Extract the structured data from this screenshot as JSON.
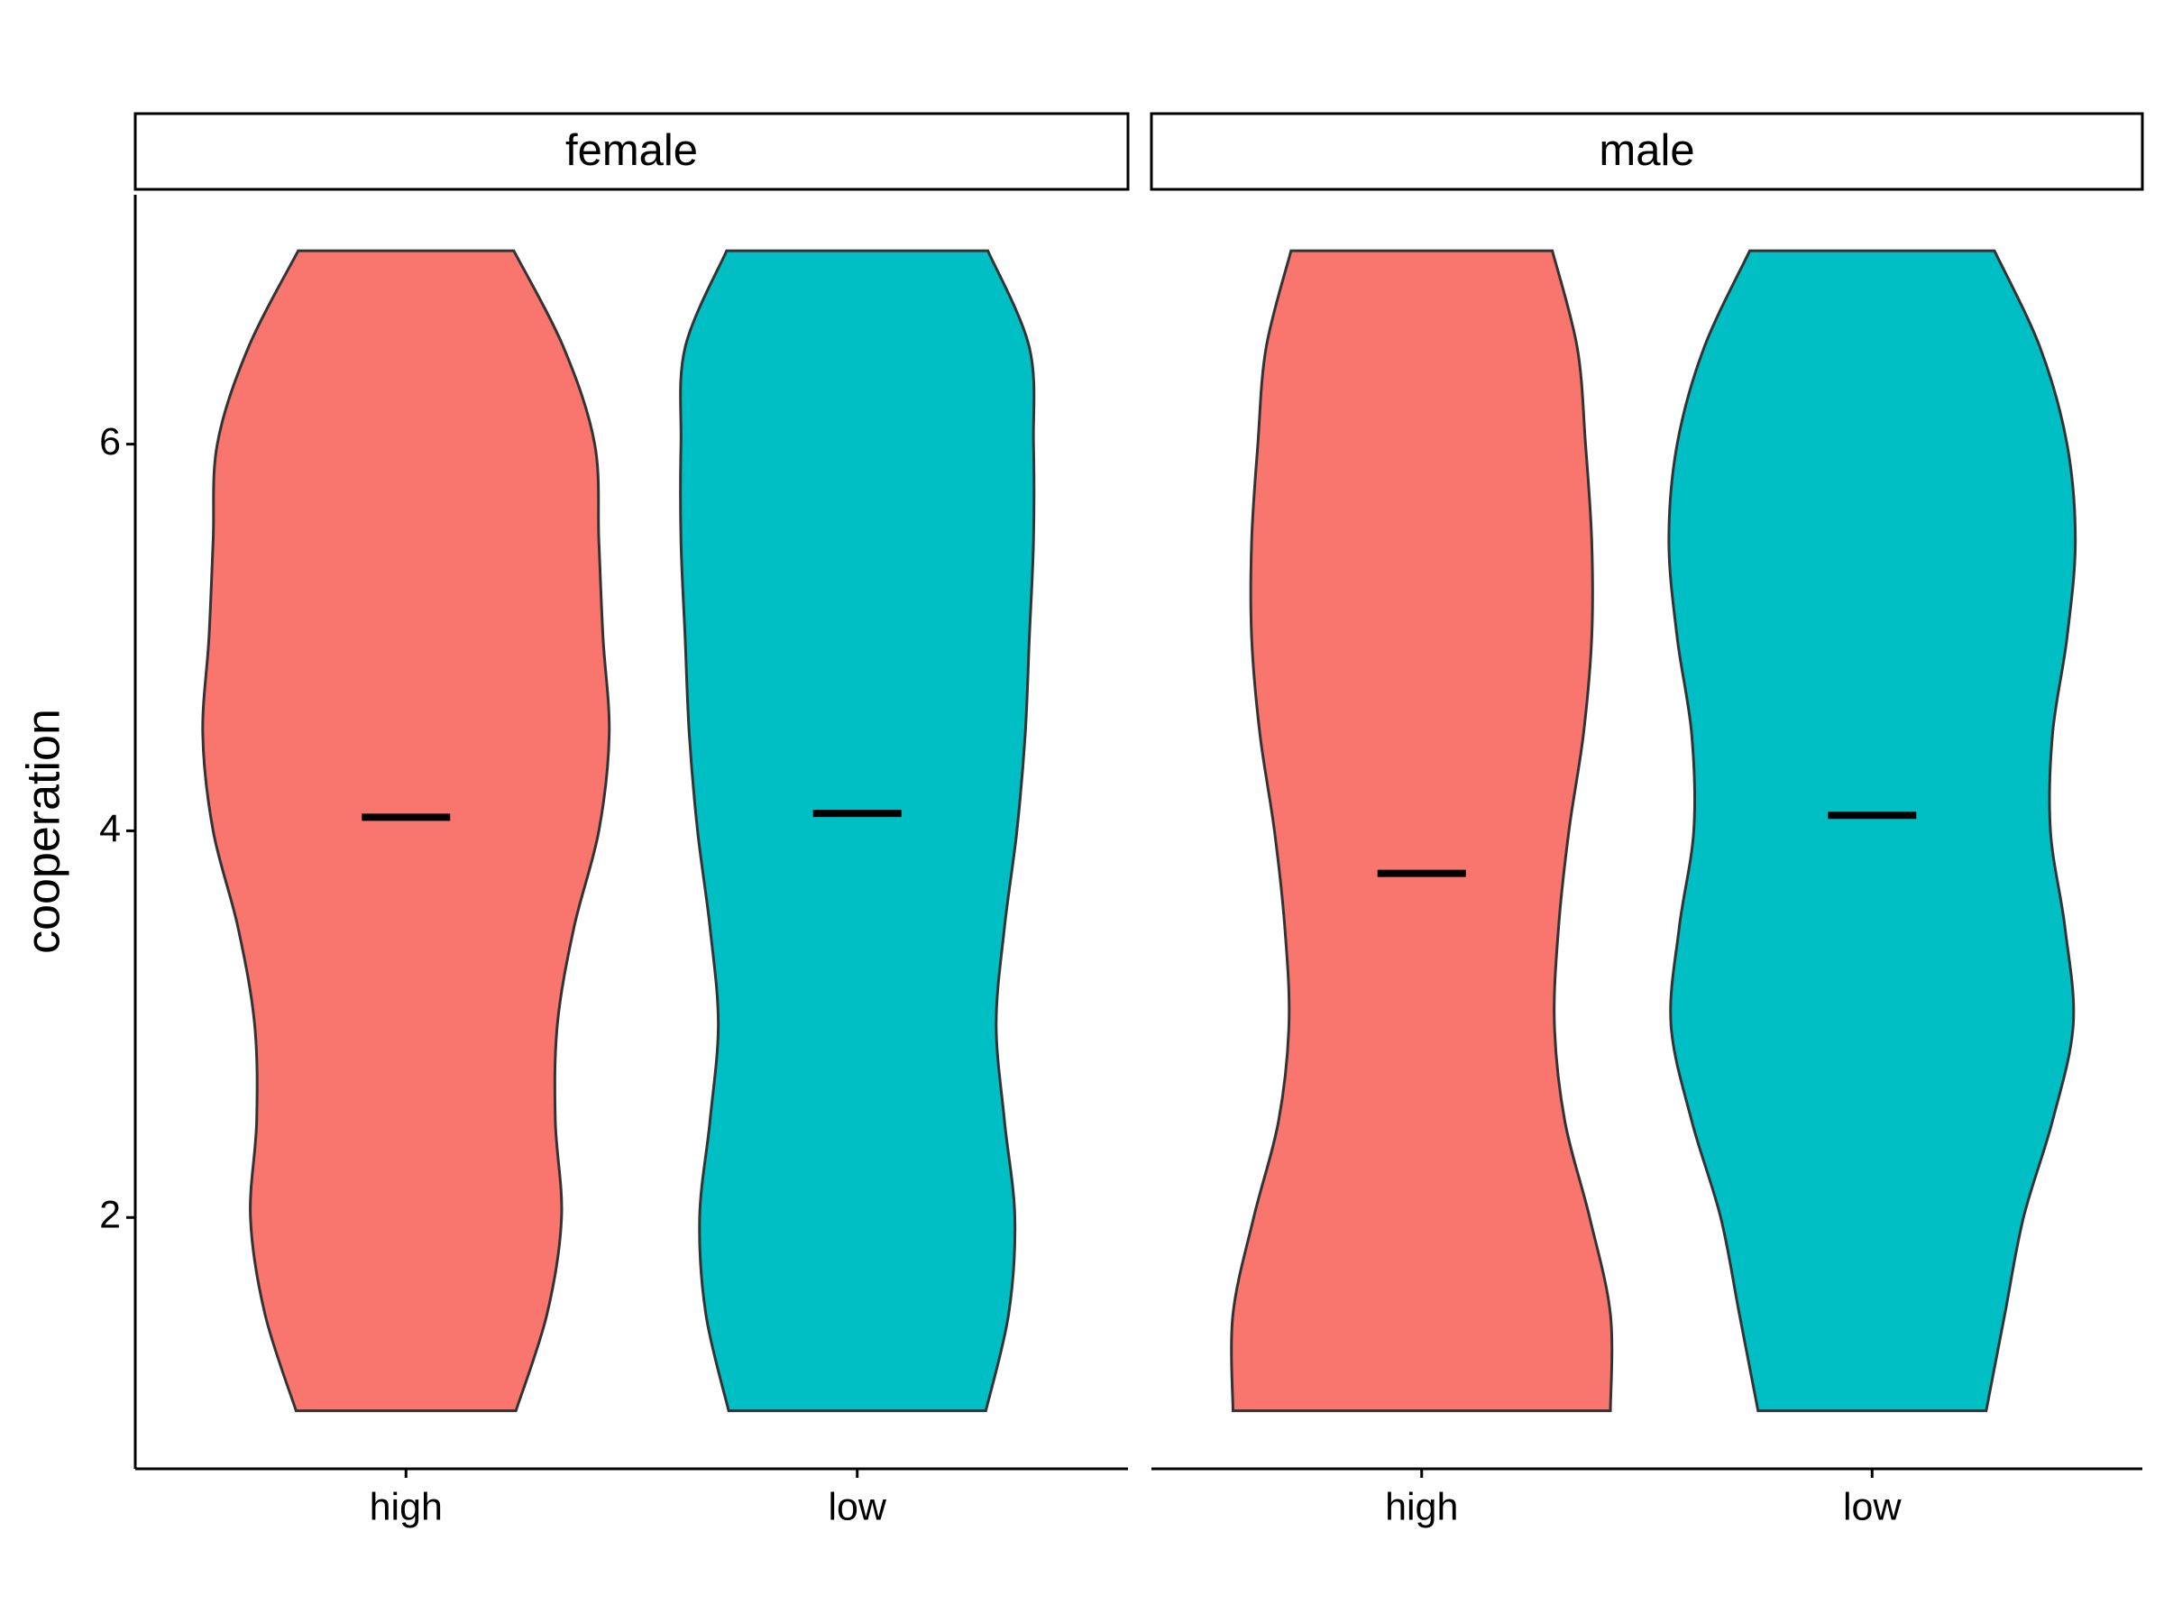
{
  "chart_data": {
    "type": "violin",
    "ylabel": "cooperation",
    "ylim": [
      0.7,
      7.29
    ],
    "yticks": [
      2,
      4,
      6
    ],
    "facets": [
      {
        "title": "female",
        "categories": [
          "high",
          "low"
        ],
        "violins": [
          {
            "color": "#f8766d",
            "mean": 4.07,
            "y": [
              1,
              1.5,
              2,
              2.5,
              3,
              3.5,
              4,
              4.5,
              5,
              5.5,
              6,
              6.5,
              7
            ],
            "widths": [
              0.53,
              0.68,
              0.75,
              0.72,
              0.73,
              0.81,
              0.93,
              0.98,
              0.95,
              0.93,
              0.91,
              0.76,
              0.52
            ]
          },
          {
            "color": "#00bfc4",
            "mean": 4.09,
            "y": [
              1,
              1.5,
              2,
              2.5,
              3,
              3.5,
              4,
              4.5,
              5,
              5.5,
              6,
              6.5,
              7
            ],
            "widths": [
              0.62,
              0.73,
              0.76,
              0.71,
              0.67,
              0.71,
              0.77,
              0.81,
              0.83,
              0.85,
              0.85,
              0.83,
              0.63
            ]
          }
        ]
      },
      {
        "title": "male",
        "categories": [
          "high",
          "low"
        ],
        "violins": [
          {
            "color": "#f8766d",
            "mean": 3.78,
            "y": [
              1,
              1.5,
              2,
              2.5,
              3,
              3.5,
              4,
              4.5,
              5,
              5.5,
              6,
              6.5,
              7
            ],
            "widths": [
              0.91,
              0.91,
              0.81,
              0.69,
              0.64,
              0.66,
              0.71,
              0.78,
              0.82,
              0.82,
              0.79,
              0.75,
              0.63
            ]
          },
          {
            "color": "#00bfc4",
            "mean": 4.08,
            "y": [
              1,
              1.5,
              2,
              2.5,
              3,
              3.5,
              4,
              4.5,
              5,
              5.5,
              6,
              6.5,
              7
            ],
            "widths": [
              0.55,
              0.64,
              0.73,
              0.87,
              0.97,
              0.93,
              0.86,
              0.87,
              0.94,
              0.98,
              0.94,
              0.81,
              0.59
            ]
          }
        ]
      }
    ]
  }
}
